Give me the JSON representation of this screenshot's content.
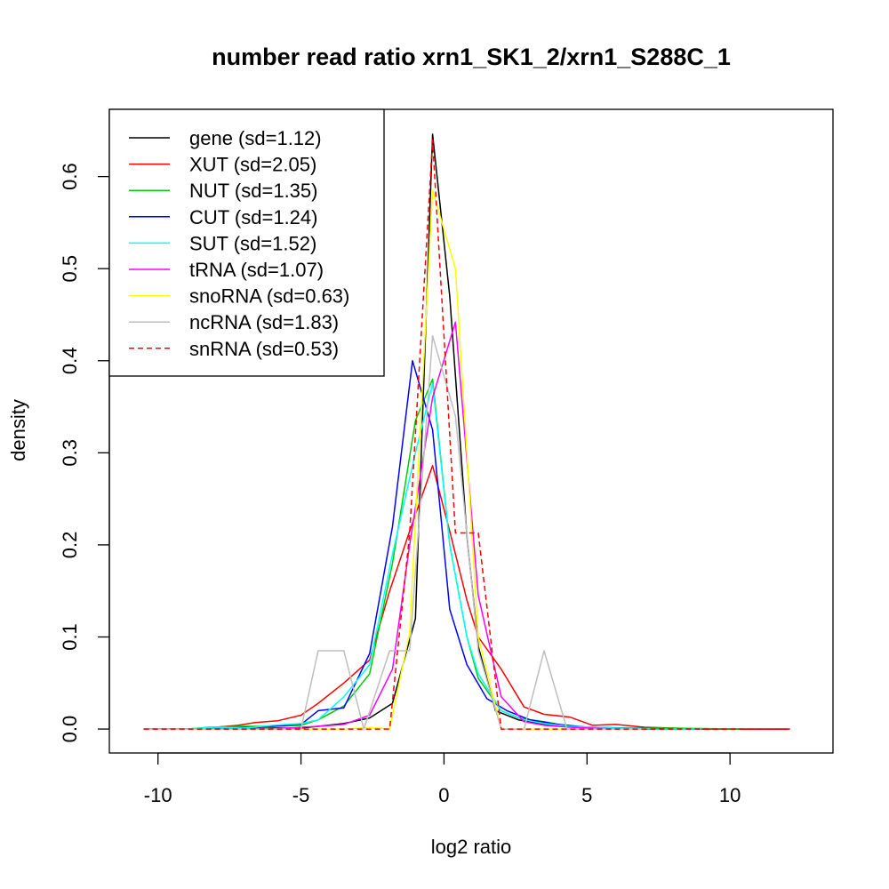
{
  "chart_data": {
    "type": "line",
    "title": "number read ratio xrn1_SK1_2/xrn1_S288C_1",
    "xlabel": "log2 ratio",
    "ylabel": "density",
    "xlim": [
      -11.7,
      13.6
    ],
    "ylim": [
      -0.026,
      0.673
    ],
    "x_ticks": [
      -10,
      -5,
      0,
      5,
      10
    ],
    "x_tick_labels": [
      "-10",
      "-5",
      "0",
      "5",
      "10"
    ],
    "y_ticks": [
      0.0,
      0.1,
      0.2,
      0.3,
      0.4,
      0.5,
      0.6
    ],
    "y_tick_labels": [
      "0.0",
      "0.1",
      "0.2",
      "0.3",
      "0.4",
      "0.5",
      "0.6"
    ],
    "grid": false,
    "legend_position": "top-left",
    "series": [
      {
        "name": "gene (sd=1.12)",
        "color": "#000000",
        "dash": "solid",
        "x": [
          -10.5,
          -9,
          -7.5,
          -6,
          -5,
          -4.4,
          -3.5,
          -2.6,
          -1.8,
          -1,
          -0.4,
          0.2,
          0.8,
          1.2,
          1.8,
          2.6,
          3.5,
          4.5,
          5.5,
          7,
          9,
          12
        ],
        "y": [
          0.0,
          0.0,
          0.0,
          0.001,
          0.001,
          0.003,
          0.006,
          0.012,
          0.028,
          0.12,
          0.646,
          0.47,
          0.21,
          0.09,
          0.02,
          0.01,
          0.005,
          0.002,
          0.001,
          0.0,
          0.0,
          0.0
        ]
      },
      {
        "name": "XUT (sd=2.05)",
        "color": "#ff0000",
        "dash": "solid",
        "x": [
          -10.5,
          -9,
          -8,
          -7.2,
          -6.6,
          -5.8,
          -5,
          -4.4,
          -3.5,
          -2.6,
          -1.9,
          -1.2,
          -0.4,
          0.2,
          0.8,
          1.2,
          2,
          2.8,
          3.5,
          4.4,
          5.2,
          6,
          7,
          8,
          9,
          10,
          12.1
        ],
        "y": [
          0.0,
          0.0,
          0.002,
          0.004,
          0.007,
          0.009,
          0.015,
          0.028,
          0.05,
          0.075,
          0.15,
          0.215,
          0.286,
          0.215,
          0.14,
          0.1,
          0.065,
          0.024,
          0.016,
          0.013,
          0.004,
          0.005,
          0.002,
          0.001,
          0.0,
          0.0,
          0.0
        ]
      },
      {
        "name": "NUT (sd=1.35)",
        "color": "#00cd00",
        "dash": "solid",
        "x": [
          -10.5,
          -9,
          -8.2,
          -7,
          -6,
          -5,
          -4.4,
          -3.5,
          -2.6,
          -1.8,
          -1,
          -0.4,
          0.2,
          0.8,
          1.2,
          2,
          2.6,
          3.5,
          4.4,
          5.2,
          6.5,
          8,
          10.5
        ],
        "y": [
          0.0,
          0.0,
          0.002,
          0.003,
          0.003,
          0.004,
          0.01,
          0.025,
          0.06,
          0.18,
          0.335,
          0.38,
          0.2,
          0.1,
          0.055,
          0.02,
          0.012,
          0.008,
          0.003,
          0.002,
          0.001,
          0.001,
          0.0
        ]
      },
      {
        "name": "CUT (sd=1.24)",
        "color": "#0000ff",
        "dash": "solid",
        "x": [
          -10.5,
          -9,
          -7.5,
          -6,
          -5,
          -4.4,
          -3.5,
          -2.6,
          -1.8,
          -1.1,
          -0.4,
          0.2,
          0.8,
          1.5,
          2.2,
          3,
          4,
          5,
          6.2,
          8
        ],
        "y": [
          0.0,
          0.0,
          0.001,
          0.003,
          0.005,
          0.02,
          0.023,
          0.082,
          0.22,
          0.4,
          0.325,
          0.13,
          0.07,
          0.033,
          0.02,
          0.01,
          0.005,
          0.002,
          0.001,
          0.0
        ]
      },
      {
        "name": "SUT (sd=1.52)",
        "color": "#00ffff",
        "dash": "solid",
        "x": [
          -10.5,
          -9,
          -8,
          -7,
          -6,
          -5,
          -4.4,
          -3.5,
          -2.6,
          -1.8,
          -1,
          -0.4,
          0.2,
          0.8,
          1.2,
          2,
          2.8,
          3.5,
          4.4,
          5.2,
          6,
          7.5,
          9
        ],
        "y": [
          0.0,
          0.0,
          0.002,
          0.001,
          0.004,
          0.006,
          0.01,
          0.035,
          0.07,
          0.19,
          0.3,
          0.375,
          0.2,
          0.1,
          0.06,
          0.02,
          0.01,
          0.006,
          0.003,
          0.002,
          0.001,
          0.0,
          0.0
        ]
      },
      {
        "name": "tRNA (sd=1.07)",
        "color": "#ff00ff",
        "dash": "solid",
        "x": [
          -10.5,
          -8,
          -6,
          -5,
          -4.4,
          -3.5,
          -2.6,
          -1.8,
          -1.2,
          -0.4,
          0.4,
          1.2,
          2,
          2.8,
          3.5,
          4.4,
          5.2,
          6.2
        ],
        "y": [
          0.0,
          0.0,
          0.0,
          0.002,
          0.003,
          0.005,
          0.015,
          0.065,
          0.2,
          0.36,
          0.442,
          0.145,
          0.035,
          0.008,
          0.004,
          0.002,
          0.001,
          0.0
        ]
      },
      {
        "name": "snoRNA (sd=0.63)",
        "color": "#ffff00",
        "dash": "solid",
        "x": [
          -10.5,
          -7,
          -5,
          -3.5,
          -2.6,
          -1.9,
          -1.2,
          -0.4,
          0.4,
          1.2,
          2,
          3,
          5,
          7
        ],
        "y": [
          0.0,
          0.0,
          0.0,
          0.0,
          0.002,
          0.0,
          0.105,
          0.585,
          0.5,
          0.1,
          0.0,
          0.0,
          0.0,
          0.0
        ]
      },
      {
        "name": "ncRNA (sd=1.83)",
        "color": "#bebebe",
        "dash": "solid",
        "x": [
          -10.5,
          -7,
          -5,
          -4.4,
          -3.5,
          -2.8,
          -1.9,
          -1.2,
          -0.4,
          0.4,
          1.2,
          2,
          2.8,
          3.5,
          4.3,
          5,
          7
        ],
        "y": [
          0.0,
          0.0,
          0.0,
          0.085,
          0.085,
          0.0,
          0.085,
          0.085,
          0.427,
          0.34,
          0.085,
          0.0,
          0.0,
          0.085,
          0.0,
          0.0,
          0.0
        ]
      },
      {
        "name": "snRNA (sd=0.53)",
        "color": "#ff0000",
        "dash": "dashed",
        "x": [
          -10.5,
          -7,
          -5,
          -3.5,
          -2.6,
          -1.9,
          -1.2,
          -0.4,
          0.4,
          1.2,
          2,
          3,
          5,
          8,
          10,
          12.1
        ],
        "y": [
          0.0,
          0.0,
          0.0,
          0.0,
          0.0,
          0.0,
          0.213,
          0.64,
          0.213,
          0.213,
          0.0,
          0.0,
          0.0,
          0.0,
          0.0,
          0.0
        ]
      }
    ]
  }
}
